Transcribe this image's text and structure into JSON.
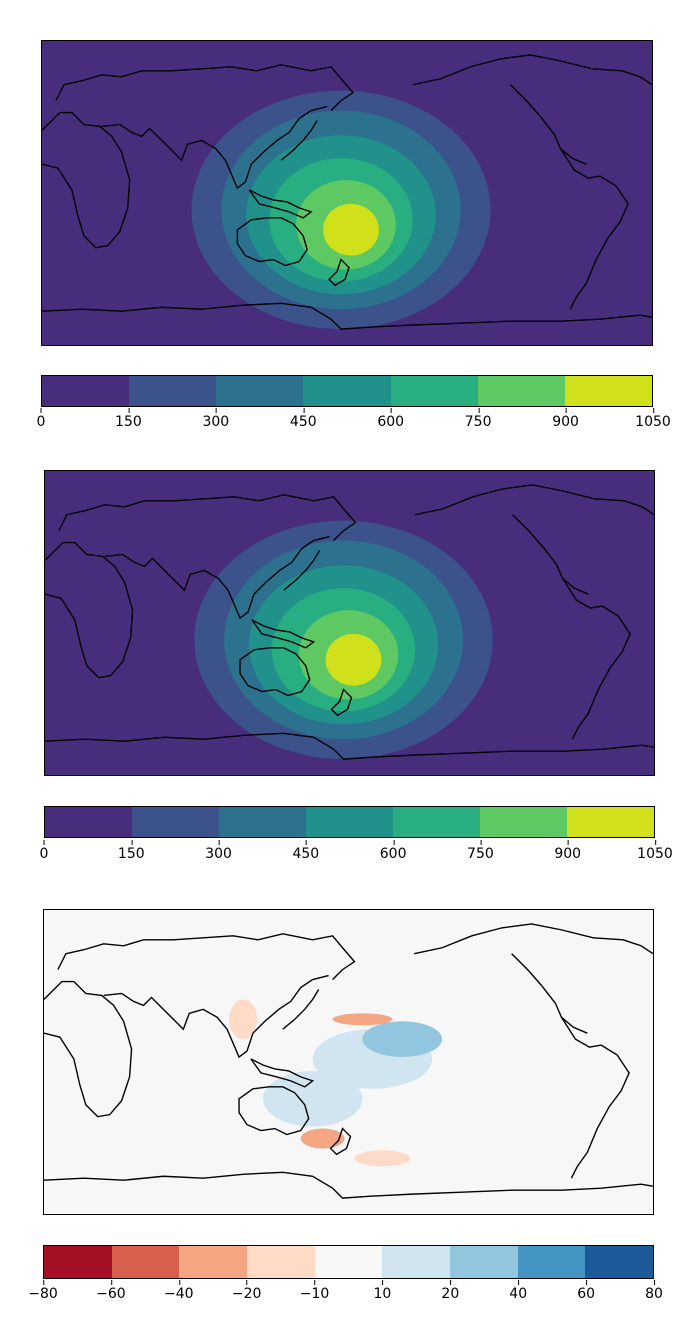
{
  "panels": [
    {
      "id": "map-1",
      "kind": "field",
      "background": "#472d7b",
      "colorbar": {
        "ticks": [
          "0",
          "150",
          "300",
          "450",
          "600",
          "750",
          "900",
          "1050"
        ],
        "colors": [
          "#472d7b",
          "#3b528b",
          "#2c728e",
          "#21918c",
          "#28ae80",
          "#5ec962",
          "#d0e11c"
        ]
      }
    },
    {
      "id": "map-2",
      "kind": "field",
      "background": "#472d7b",
      "colorbar": {
        "ticks": [
          "0",
          "150",
          "300",
          "450",
          "600",
          "750",
          "900",
          "1050"
        ],
        "colors": [
          "#472d7b",
          "#3b528b",
          "#2c728e",
          "#21918c",
          "#28ae80",
          "#5ec962",
          "#d0e11c"
        ]
      }
    },
    {
      "id": "map-3",
      "kind": "difference",
      "background": "#f7f7f7",
      "colorbar": {
        "ticks": [
          "−80",
          "−60",
          "−40",
          "−20",
          "−10",
          "10",
          "20",
          "40",
          "60",
          "80"
        ],
        "colors": [
          "#a50f26",
          "#d6604d",
          "#f4a582",
          "#fddbc7",
          "#f7f7f7",
          "#d1e5f0",
          "#92c5de",
          "#4393c3",
          "#1d5a9a"
        ]
      }
    }
  ]
}
